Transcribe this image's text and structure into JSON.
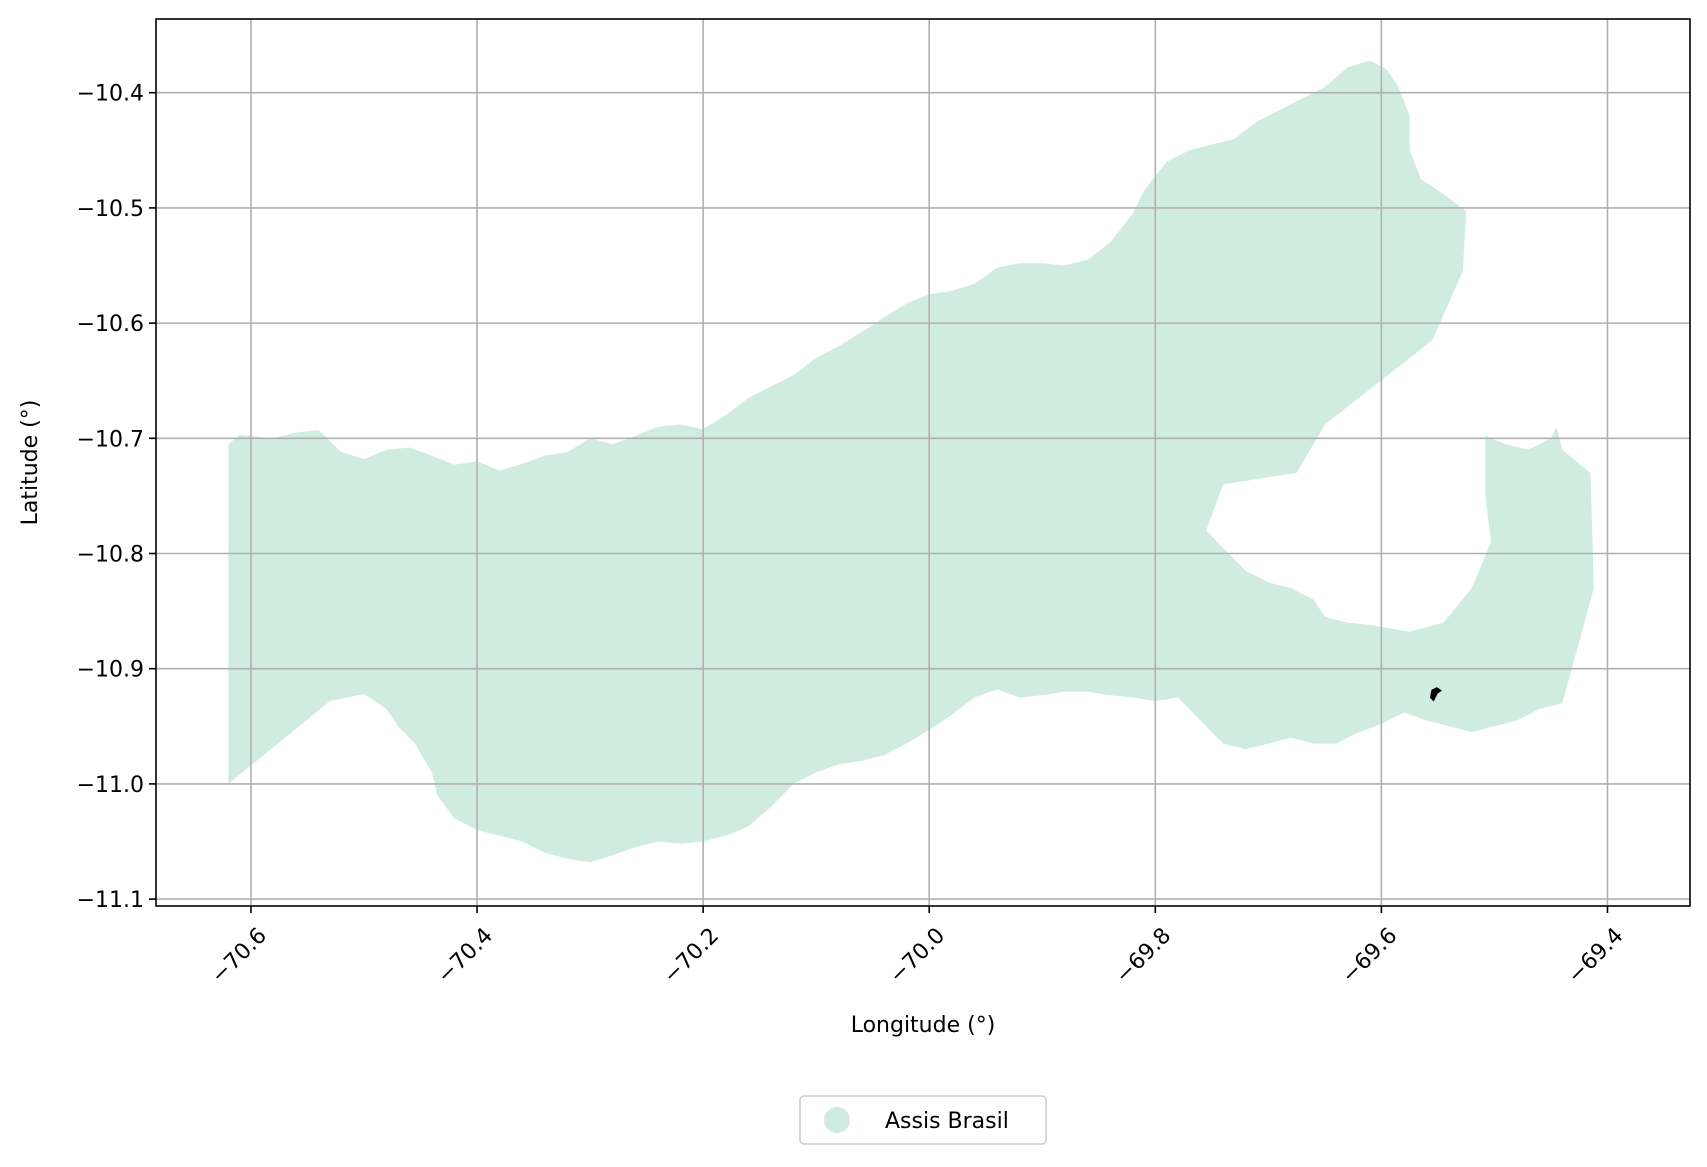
{
  "map": {
    "xlabel": "Longitude (°)",
    "ylabel": "Latitude (°)",
    "xlim": [
      -70.684,
      -69.327
    ],
    "ylim": [
      -11.106,
      -10.336
    ],
    "grid": true,
    "legend_placement": "bottom-center",
    "fill_color": "#d0ece0",
    "marker_color": "#000000",
    "x_ticks": [
      {
        "value": -70.6,
        "label": "−70.6"
      },
      {
        "value": -70.4,
        "label": "−70.4"
      },
      {
        "value": -70.2,
        "label": "−70.2"
      },
      {
        "value": -70.0,
        "label": "−70.0"
      },
      {
        "value": -69.8,
        "label": "−69.8"
      },
      {
        "value": -69.6,
        "label": "−69.6"
      },
      {
        "value": -69.4,
        "label": "−69.4"
      }
    ],
    "y_ticks": [
      {
        "value": -10.4,
        "label": "−10.4"
      },
      {
        "value": -10.5,
        "label": "−10.5"
      },
      {
        "value": -10.6,
        "label": "−10.6"
      },
      {
        "value": -10.7,
        "label": "−10.7"
      },
      {
        "value": -10.8,
        "label": "−10.8"
      },
      {
        "value": -10.9,
        "label": "−10.9"
      },
      {
        "value": -11.0,
        "label": "−11.0"
      },
      {
        "value": -11.1,
        "label": "−11.1"
      }
    ],
    "legend": [
      {
        "label": "Assis Brasil",
        "color": "#d0ece0"
      }
    ],
    "region": [
      [
        -70.62,
        -10.705
      ],
      [
        -70.61,
        -10.697
      ],
      [
        -70.58,
        -10.7
      ],
      [
        -70.56,
        -10.695
      ],
      [
        -70.54,
        -10.693
      ],
      [
        -70.52,
        -10.712
      ],
      [
        -70.5,
        -10.718
      ],
      [
        -70.48,
        -10.71
      ],
      [
        -70.46,
        -10.708
      ],
      [
        -70.44,
        -10.715
      ],
      [
        -70.42,
        -10.723
      ],
      [
        -70.4,
        -10.72
      ],
      [
        -70.38,
        -10.728
      ],
      [
        -70.36,
        -10.722
      ],
      [
        -70.34,
        -10.715
      ],
      [
        -70.32,
        -10.712
      ],
      [
        -70.3,
        -10.7
      ],
      [
        -70.28,
        -10.705
      ],
      [
        -70.26,
        -10.698
      ],
      [
        -70.24,
        -10.69
      ],
      [
        -70.22,
        -10.688
      ],
      [
        -70.2,
        -10.692
      ],
      [
        -70.18,
        -10.68
      ],
      [
        -70.16,
        -10.665
      ],
      [
        -70.14,
        -10.655
      ],
      [
        -70.12,
        -10.645
      ],
      [
        -70.1,
        -10.63
      ],
      [
        -70.08,
        -10.62
      ],
      [
        -70.06,
        -10.608
      ],
      [
        -70.04,
        -10.595
      ],
      [
        -70.02,
        -10.583
      ],
      [
        -70.0,
        -10.575
      ],
      [
        -69.98,
        -10.572
      ],
      [
        -69.96,
        -10.566
      ],
      [
        -69.94,
        -10.552
      ],
      [
        -69.92,
        -10.548
      ],
      [
        -69.9,
        -10.548
      ],
      [
        -69.88,
        -10.55
      ],
      [
        -69.86,
        -10.545
      ],
      [
        -69.84,
        -10.53
      ],
      [
        -69.82,
        -10.505
      ],
      [
        -69.81,
        -10.485
      ],
      [
        -69.79,
        -10.46
      ],
      [
        -69.77,
        -10.45
      ],
      [
        -69.75,
        -10.445
      ],
      [
        -69.73,
        -10.44
      ],
      [
        -69.71,
        -10.425
      ],
      [
        -69.69,
        -10.415
      ],
      [
        -69.67,
        -10.405
      ],
      [
        -69.65,
        -10.395
      ],
      [
        -69.63,
        -10.378
      ],
      [
        -69.61,
        -10.372
      ],
      [
        -69.595,
        -10.38
      ],
      [
        -69.585,
        -10.395
      ],
      [
        -69.575,
        -10.42
      ],
      [
        -69.575,
        -10.45
      ],
      [
        -69.565,
        -10.475
      ],
      [
        -69.545,
        -10.488
      ],
      [
        -69.525,
        -10.503
      ],
      [
        -69.528,
        -10.555
      ],
      [
        -69.555,
        -10.615
      ],
      [
        -69.65,
        -10.688
      ],
      [
        -69.675,
        -10.73
      ],
      [
        -69.74,
        -10.74
      ],
      [
        -69.755,
        -10.78
      ],
      [
        -69.74,
        -10.795
      ],
      [
        -69.72,
        -10.815
      ],
      [
        -69.7,
        -10.825
      ],
      [
        -69.68,
        -10.83
      ],
      [
        -69.66,
        -10.84
      ],
      [
        -69.65,
        -10.855
      ],
      [
        -69.63,
        -10.86
      ],
      [
        -69.61,
        -10.862
      ],
      [
        -69.575,
        -10.868
      ],
      [
        -69.545,
        -10.86
      ],
      [
        -69.52,
        -10.83
      ],
      [
        -69.503,
        -10.79
      ],
      [
        -69.508,
        -10.75
      ],
      [
        -69.508,
        -10.698
      ],
      [
        -69.49,
        -10.705
      ],
      [
        -69.47,
        -10.71
      ],
      [
        -69.45,
        -10.7
      ],
      [
        -69.445,
        -10.69
      ],
      [
        -69.44,
        -10.71
      ],
      [
        -69.415,
        -10.73
      ],
      [
        -69.412,
        -10.83
      ],
      [
        -69.44,
        -10.93
      ],
      [
        -69.46,
        -10.935
      ],
      [
        -69.48,
        -10.945
      ],
      [
        -69.5,
        -10.95
      ],
      [
        -69.52,
        -10.955
      ],
      [
        -69.54,
        -10.95
      ],
      [
        -69.56,
        -10.945
      ],
      [
        -69.58,
        -10.938
      ],
      [
        -69.6,
        -10.948
      ],
      [
        -69.62,
        -10.955
      ],
      [
        -69.64,
        -10.965
      ],
      [
        -69.66,
        -10.965
      ],
      [
        -69.68,
        -10.96
      ],
      [
        -69.7,
        -10.965
      ],
      [
        -69.72,
        -10.97
      ],
      [
        -69.74,
        -10.965
      ],
      [
        -69.76,
        -10.945
      ],
      [
        -69.78,
        -10.925
      ],
      [
        -69.8,
        -10.928
      ],
      [
        -69.82,
        -10.925
      ],
      [
        -69.84,
        -10.923
      ],
      [
        -69.86,
        -10.92
      ],
      [
        -69.88,
        -10.92
      ],
      [
        -69.9,
        -10.923
      ],
      [
        -69.92,
        -10.925
      ],
      [
        -69.94,
        -10.918
      ],
      [
        -69.96,
        -10.925
      ],
      [
        -69.98,
        -10.94
      ],
      [
        -70.0,
        -10.953
      ],
      [
        -70.02,
        -10.965
      ],
      [
        -70.04,
        -10.975
      ],
      [
        -70.06,
        -10.98
      ],
      [
        -70.08,
        -10.983
      ],
      [
        -70.1,
        -10.99
      ],
      [
        -70.12,
        -11.0
      ],
      [
        -70.14,
        -11.02
      ],
      [
        -70.16,
        -11.037
      ],
      [
        -70.18,
        -11.045
      ],
      [
        -70.2,
        -11.05
      ],
      [
        -70.22,
        -11.052
      ],
      [
        -70.24,
        -11.05
      ],
      [
        -70.26,
        -11.055
      ],
      [
        -70.28,
        -11.062
      ],
      [
        -70.3,
        -11.068
      ],
      [
        -70.32,
        -11.065
      ],
      [
        -70.34,
        -11.06
      ],
      [
        -70.36,
        -11.05
      ],
      [
        -70.38,
        -11.045
      ],
      [
        -70.4,
        -11.04
      ],
      [
        -70.42,
        -11.03
      ],
      [
        -70.435,
        -11.01
      ],
      [
        -70.44,
        -10.99
      ],
      [
        -70.455,
        -10.965
      ],
      [
        -70.47,
        -10.95
      ],
      [
        -70.48,
        -10.935
      ],
      [
        -70.5,
        -10.922
      ],
      [
        -70.53,
        -10.928
      ],
      [
        -70.62,
        -11.0
      ]
    ],
    "marker": [
      [
        -69.556,
        -10.925
      ],
      [
        -69.555,
        -10.919
      ],
      [
        -69.551,
        -10.917
      ],
      [
        -69.548,
        -10.919
      ],
      [
        -69.551,
        -10.921
      ],
      [
        -69.554,
        -10.927
      ]
    ]
  }
}
